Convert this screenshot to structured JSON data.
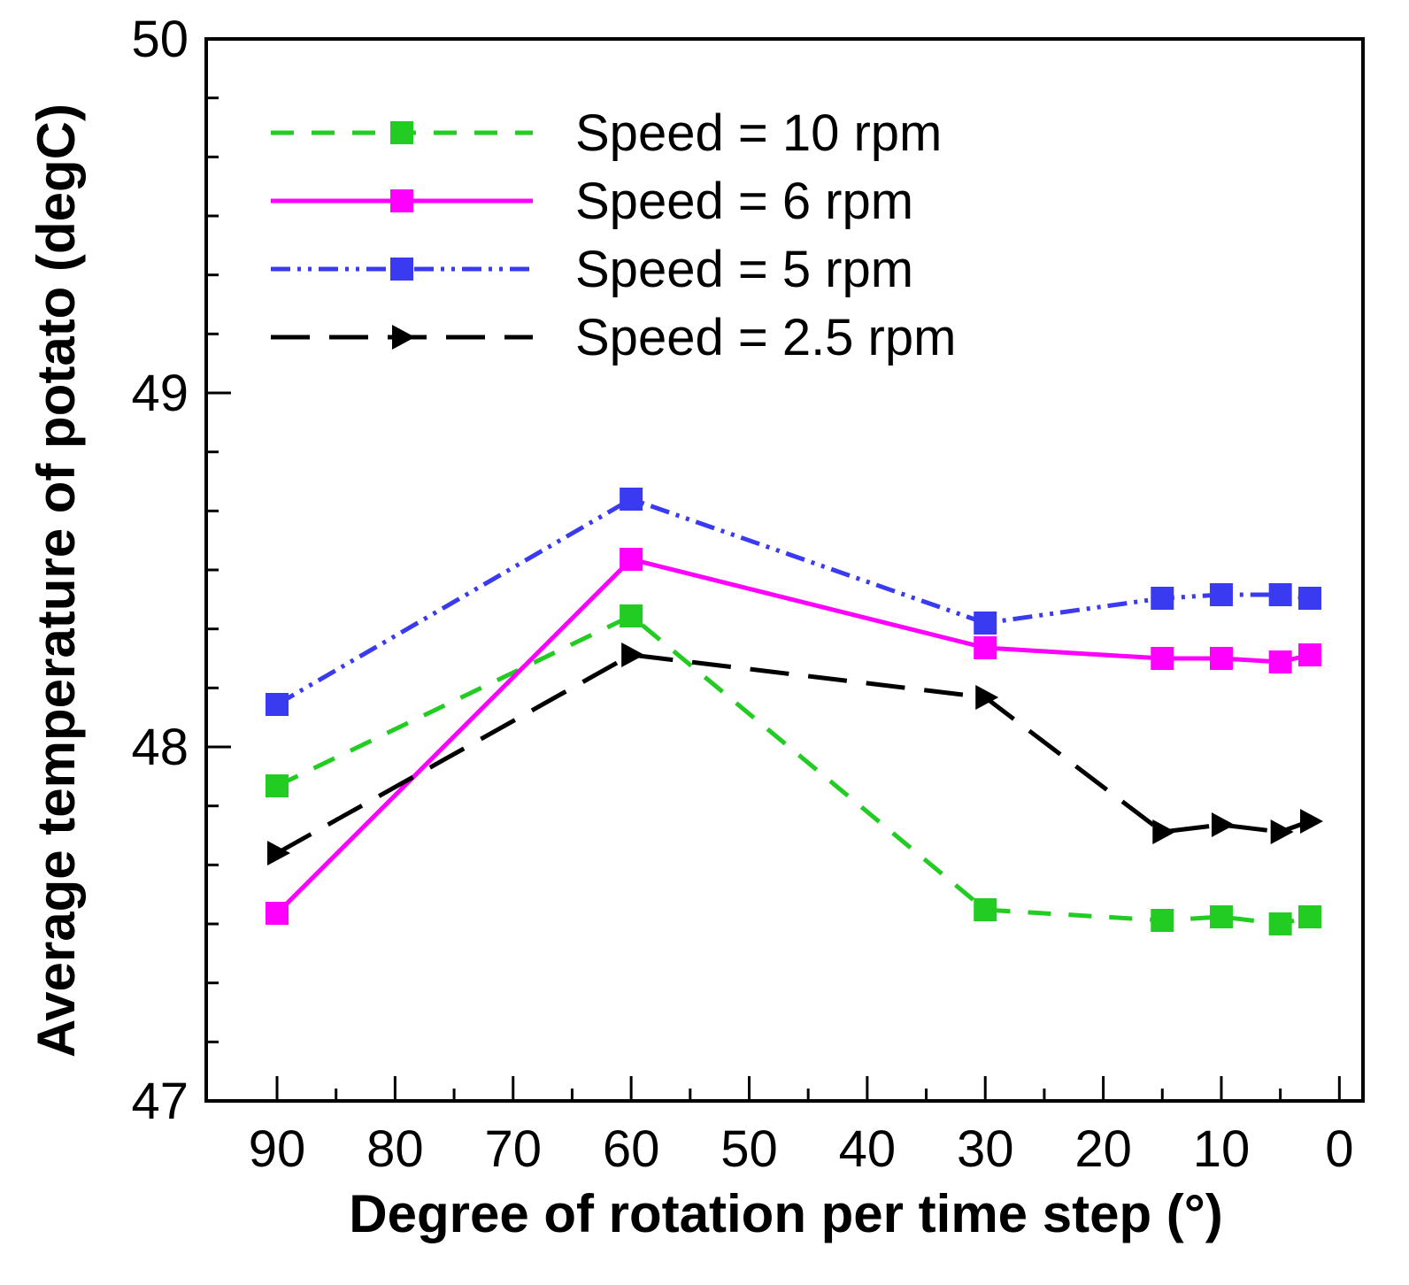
{
  "chart_data": {
    "type": "line",
    "xlabel": "Degree of rotation per time step (°)",
    "ylabel": "Average temperature of potato (degC)",
    "xlim": [
      96,
      -2
    ],
    "ylim": [
      47,
      50
    ],
    "x_ticks_major": [
      90,
      80,
      70,
      60,
      50,
      40,
      30,
      20,
      10,
      0
    ],
    "x_tick_labels": [
      "90",
      "80",
      "70",
      "60",
      "50",
      "40",
      "30",
      "20",
      "10",
      "0"
    ],
    "y_ticks_major": [
      47,
      48,
      49,
      50
    ],
    "y_tick_labels": [
      "47",
      "48",
      "49",
      "50"
    ],
    "y_minor_step": 0.1667,
    "grid": false,
    "legend_position": "top-left",
    "series": [
      {
        "name": "Speed = 10 rpm",
        "color": "#22cc22",
        "line_style": "dashed",
        "marker": "square",
        "x": [
          90,
          60,
          30,
          15,
          10,
          5,
          2.5
        ],
        "y": [
          47.89,
          48.37,
          47.54,
          47.51,
          47.52,
          47.5,
          47.52
        ]
      },
      {
        "name": "Speed = 6 rpm",
        "color": "#ff00ff",
        "line_style": "solid",
        "marker": "square",
        "x": [
          90,
          60,
          30,
          15,
          10,
          5,
          2.5
        ],
        "y": [
          47.53,
          48.53,
          48.28,
          48.25,
          48.25,
          48.24,
          48.26
        ]
      },
      {
        "name": "Speed = 5 rpm",
        "color": "#3a3af0",
        "line_style": "dash-dot-dot",
        "marker": "square",
        "x": [
          90,
          60,
          30,
          15,
          10,
          5,
          2.5
        ],
        "y": [
          48.12,
          48.7,
          48.35,
          48.42,
          48.43,
          48.43,
          48.42
        ]
      },
      {
        "name": "Speed = 2.5 rpm",
        "color": "#000000",
        "line_style": "long-dash",
        "marker": "triangle-right",
        "x": [
          90,
          60,
          30,
          15,
          10,
          5,
          2.5
        ],
        "y": [
          47.7,
          48.26,
          48.14,
          47.76,
          47.78,
          47.76,
          47.79
        ]
      }
    ]
  }
}
